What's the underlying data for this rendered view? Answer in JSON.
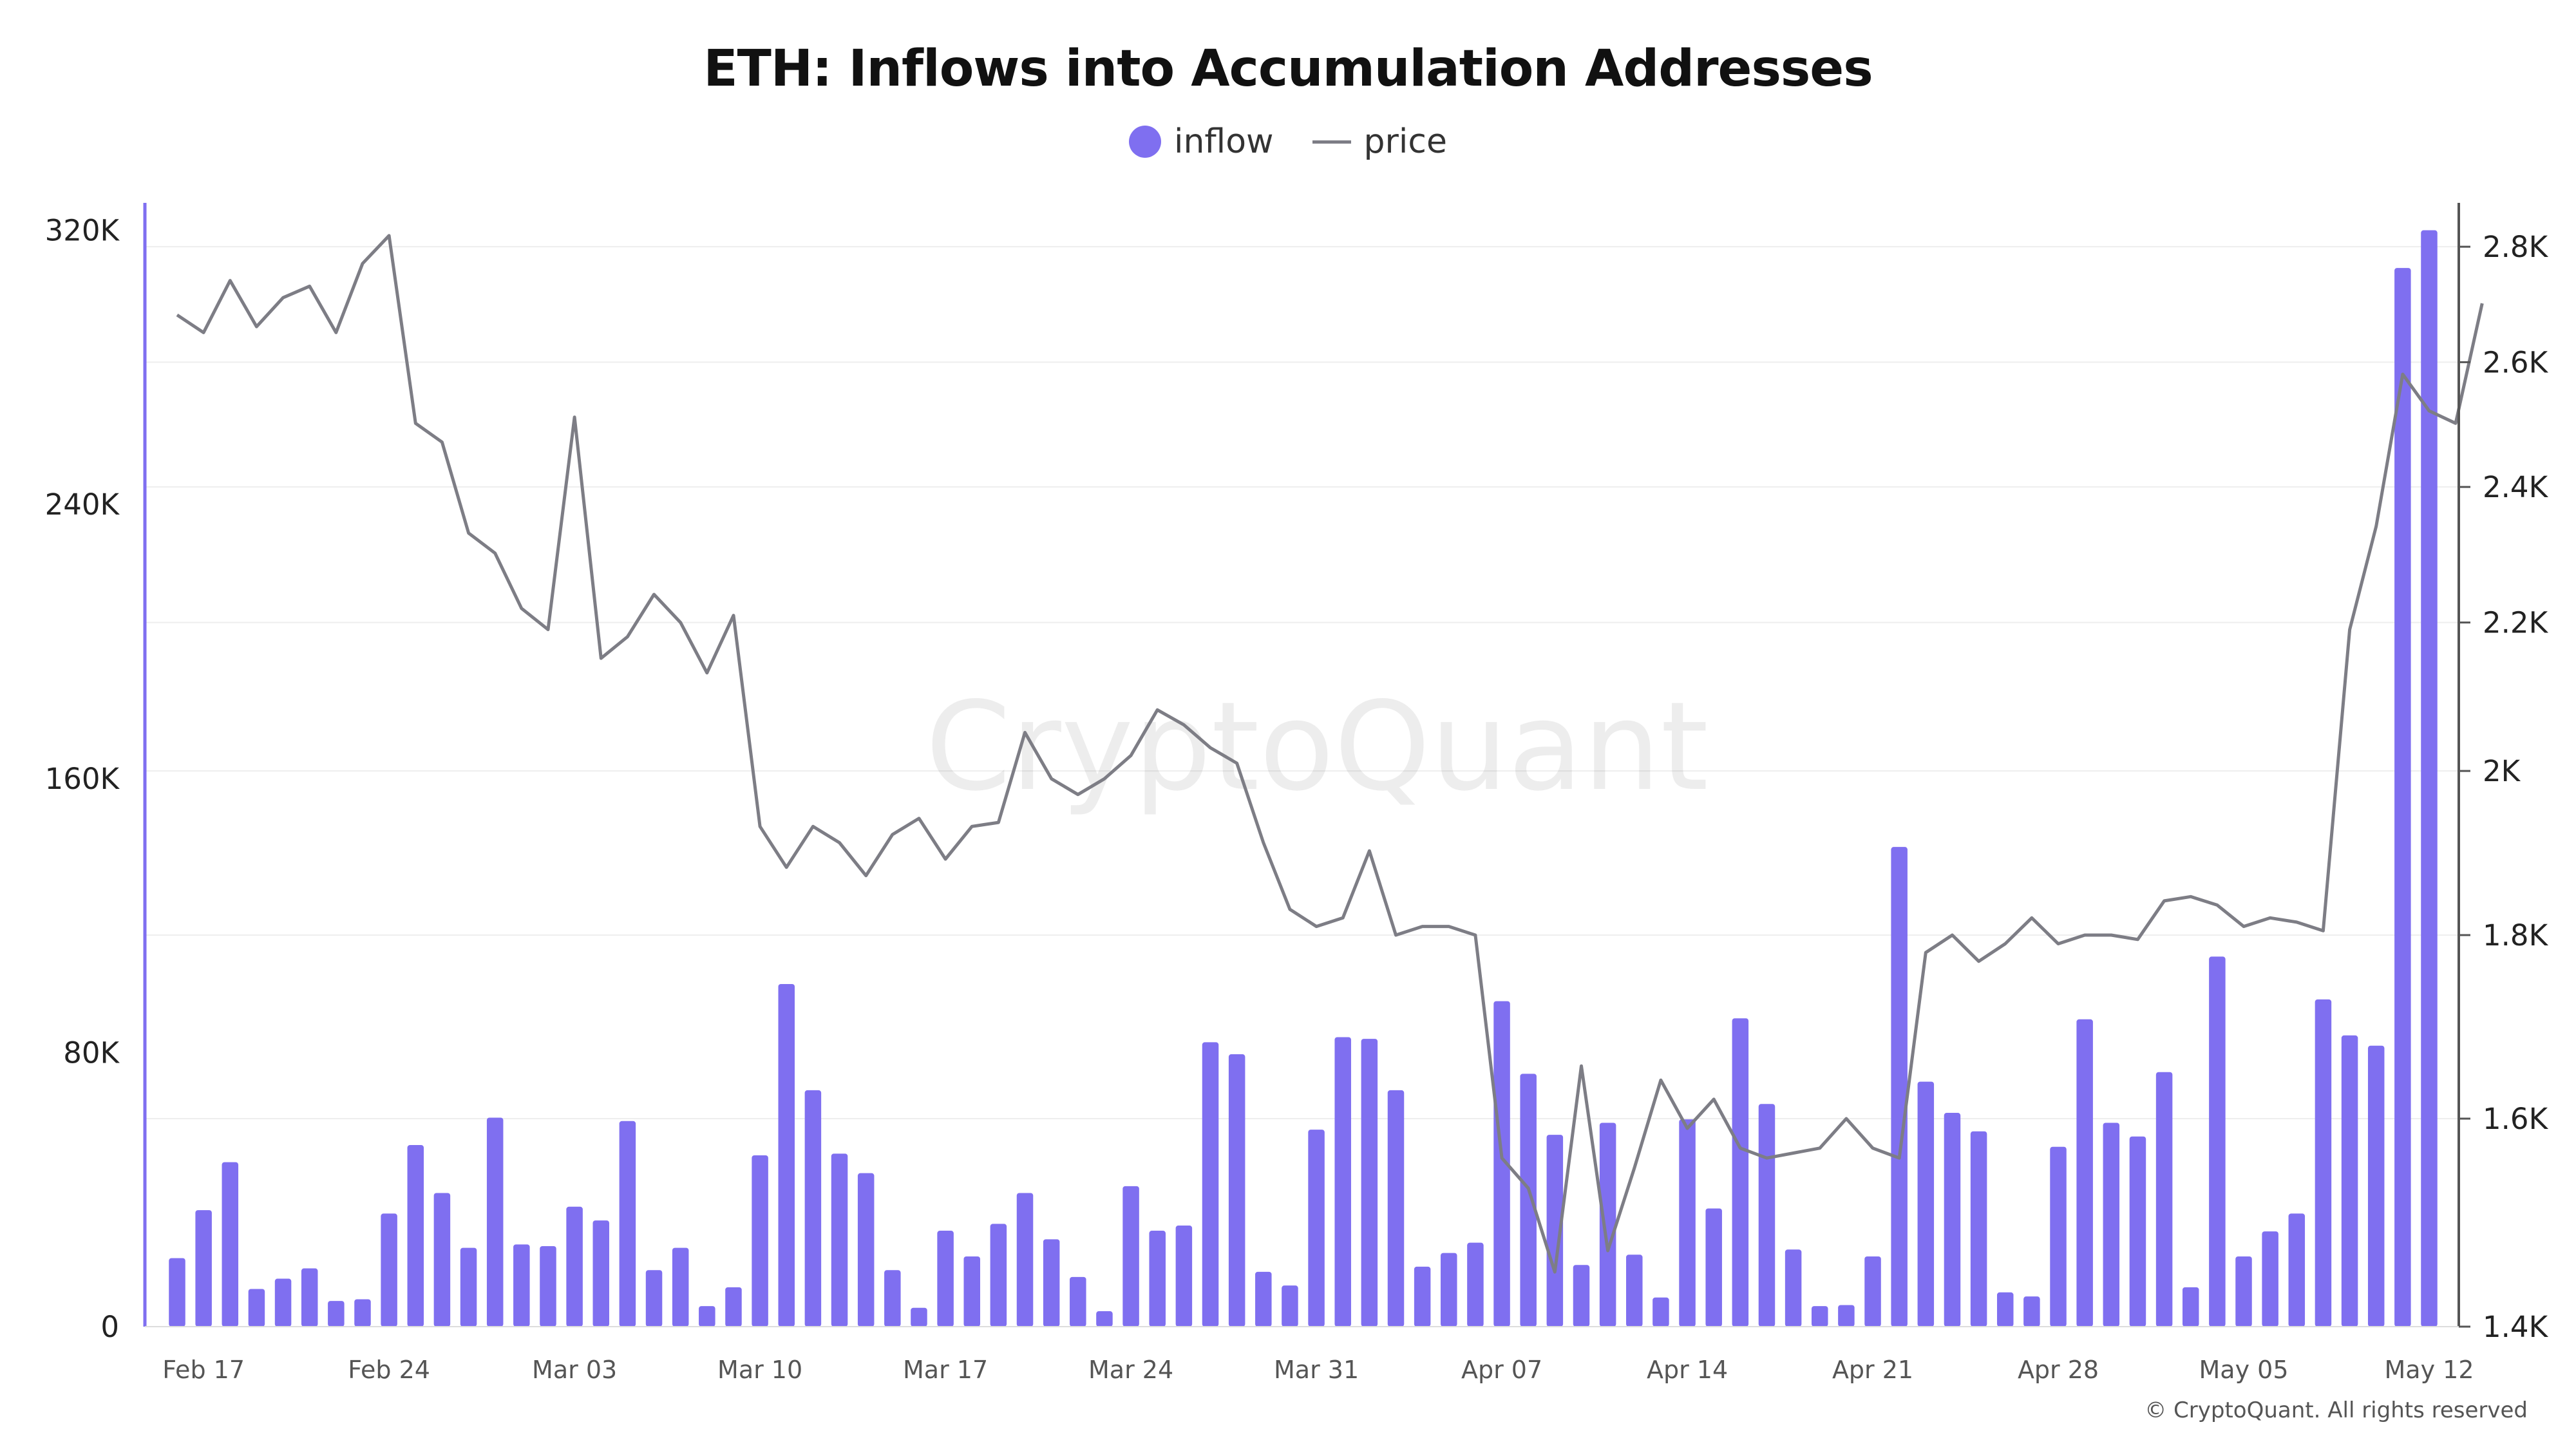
{
  "chart_data": {
    "type": "bar",
    "title": "ETH: Inflows into Accumulation Addresses",
    "legend": {
      "placement": "top-center",
      "inflow_label": "inflow",
      "price_label": "price"
    },
    "watermark": "CryptoQuant",
    "copyright": "© CryptoQuant. All rights reserved",
    "colors": {
      "inflow": "#7f6ff0",
      "price": "#7d7d85",
      "left_axis": "#7f6ff0",
      "grid": "#eeeeee"
    },
    "x_ticks": [
      "Feb 17",
      "Feb 24",
      "Mar 03",
      "Mar 10",
      "Mar 17",
      "Mar 24",
      "Mar 31",
      "Apr 07",
      "Apr 14",
      "Apr 21",
      "Apr 28",
      "May 05",
      "May 12"
    ],
    "y_left": {
      "ticks": [
        "0",
        "80K",
        "160K",
        "240K",
        "320K"
      ],
      "ylim": [
        0,
        328000
      ]
    },
    "y_right": {
      "ticks": [
        "1.4K",
        "1.6K",
        "1.8K",
        "2K",
        "2.2K",
        "2.4K",
        "2.6K",
        "2.8K"
      ],
      "ylim": [
        1400,
        2880
      ],
      "scale": "log"
    },
    "grid": true,
    "start_day": "Feb 16",
    "series": [
      {
        "name": "inflow",
        "kind": "bar",
        "axis": "left",
        "values": [
          20000,
          34000,
          48000,
          11000,
          14000,
          17000,
          7500,
          8000,
          33000,
          53000,
          39000,
          23000,
          61000,
          24000,
          23500,
          35000,
          31000,
          60000,
          16500,
          23000,
          6000,
          11500,
          50000,
          100000,
          69000,
          50500,
          44800,
          16500,
          5500,
          28000,
          20500,
          30000,
          39000,
          25500,
          14500,
          4500,
          41000,
          28000,
          29500,
          83000,
          79500,
          16000,
          12000,
          57500,
          84500,
          84000,
          69000,
          17500,
          21500,
          24500,
          95000,
          73800,
          56000,
          18000,
          59500,
          21000,
          8500,
          60500,
          34500,
          90000,
          65000,
          22500,
          6000,
          6300,
          20500,
          140000,
          71500,
          62400,
          57000,
          10000,
          8800,
          52500,
          89700,
          59500,
          55500,
          74300,
          11500,
          108000,
          20500,
          27800,
          33000,
          95500,
          85000,
          82000,
          309000,
          320000
        ]
      },
      {
        "name": "price",
        "kind": "line",
        "axis": "right",
        "values": [
          2680,
          2650,
          2740,
          2660,
          2710,
          2730,
          2650,
          2770,
          2820,
          2500,
          2470,
          2330,
          2300,
          2220,
          2190,
          2510,
          2150,
          2180,
          2240,
          2200,
          2130,
          2210,
          1930,
          1880,
          1930,
          1910,
          1870,
          1920,
          1940,
          1890,
          1930,
          1935,
          2050,
          1990,
          1970,
          1990,
          2020,
          2080,
          2060,
          2030,
          2010,
          1910,
          1830,
          1810,
          1820,
          1900,
          1800,
          1810,
          1810,
          1800,
          1560,
          1530,
          1450,
          1655,
          1470,
          1550,
          1640,
          1590,
          1620,
          1570,
          1560,
          1565,
          1570,
          1600,
          1570,
          1560,
          1780,
          1800,
          1770,
          1790,
          1820,
          1790,
          1800,
          1800,
          1795,
          1840,
          1845,
          1835,
          1810,
          1820,
          1815,
          1805,
          2190,
          2340,
          2580,
          2520,
          2500,
          2700
        ]
      }
    ]
  }
}
